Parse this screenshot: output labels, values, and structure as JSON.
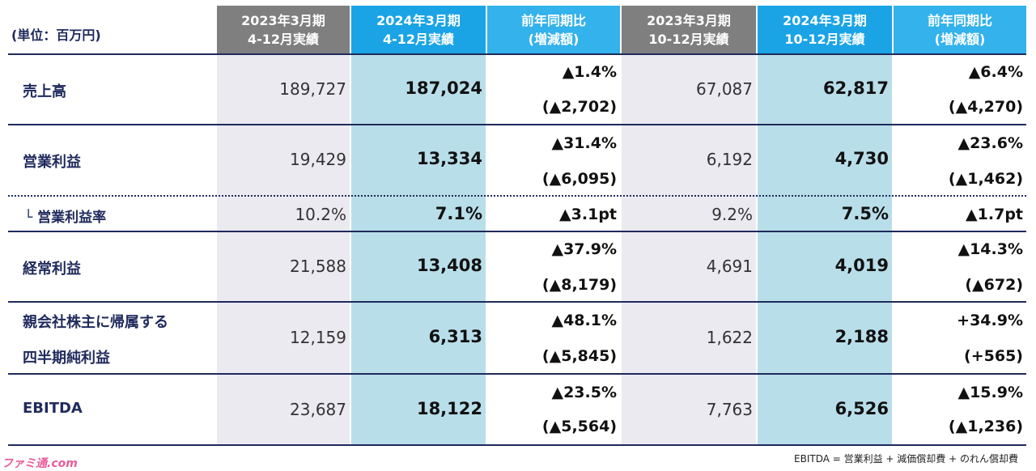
{
  "unit_label": "(単位：百万円)",
  "headers": [
    {
      "line1": "2023年3月期",
      "line2": "4-12月実績"
    },
    {
      "line1": "2024年3月期",
      "line2": "4-12月実績"
    },
    {
      "line1": "前年同期比",
      "line2": "(増減額)"
    },
    {
      "line1": "2023年3月期",
      "line2": "10-12月実績"
    },
    {
      "line1": "2024年3月期",
      "line2": "10-12月実績"
    },
    {
      "line1": "前年同期比",
      "line2": "(増減額)"
    }
  ],
  "rows": [
    {
      "label": "売上高",
      "prev": "189,727",
      "curr": "187,024",
      "chg_pct": "▲1.4%",
      "chg_amt": "(▲2,702)",
      "q_prev": "67,087",
      "q_curr": "62,817",
      "q_chg_pct": "▲6.4%",
      "q_chg_amt": "(▲4,270)"
    },
    {
      "label": "営業利益",
      "prev": "19,429",
      "curr": "13,334",
      "chg_pct": "▲31.4%",
      "chg_amt": "(▲6,095)",
      "q_prev": "6,192",
      "q_curr": "4,730",
      "q_chg_pct": "▲23.6%",
      "q_chg_amt": "(▲1,462)"
    },
    {
      "label": "└ 営業利益率",
      "prev": "10.2%",
      "curr": "7.1%",
      "chg_pct": "▲3.1pt",
      "q_prev": "9.2%",
      "q_curr": "7.5%",
      "q_chg_pct": "▲1.7pt"
    },
    {
      "label": "経常利益",
      "prev": "21,588",
      "curr": "13,408",
      "chg_pct": "▲37.9%",
      "chg_amt": "(▲8,179)",
      "q_prev": "4,691",
      "q_curr": "4,019",
      "q_chg_pct": "▲14.3%",
      "q_chg_amt": "(▲672)"
    },
    {
      "label_line1": "親会社株主に帰属する",
      "label_line2": "四半期純利益",
      "prev": "12,159",
      "curr": "6,313",
      "chg_pct": "▲48.1%",
      "chg_amt": "(▲5,845)",
      "q_prev": "1,622",
      "q_curr": "2,188",
      "q_chg_pct": "+34.9%",
      "q_chg_amt": "(+565)"
    },
    {
      "label": "EBITDA",
      "prev": "23,687",
      "curr": "18,122",
      "chg_pct": "▲23.5%",
      "chg_amt": "(▲5,564)",
      "q_prev": "7,763",
      "q_curr": "6,526",
      "q_chg_pct": "▲15.9%",
      "q_chg_amt": "(▲1,236)"
    }
  ],
  "footnote": "EBITDA = 営業利益 + 減価償却費 + のれん償却費",
  "watermark": "ファミ通.com",
  "colors": {
    "navy": "#1f2a5c",
    "header_gray": "#7f7f7f",
    "header_blue": "#1aa4e6",
    "band_gray": "#ebeaf1",
    "band_blue": "#b8dee9"
  }
}
